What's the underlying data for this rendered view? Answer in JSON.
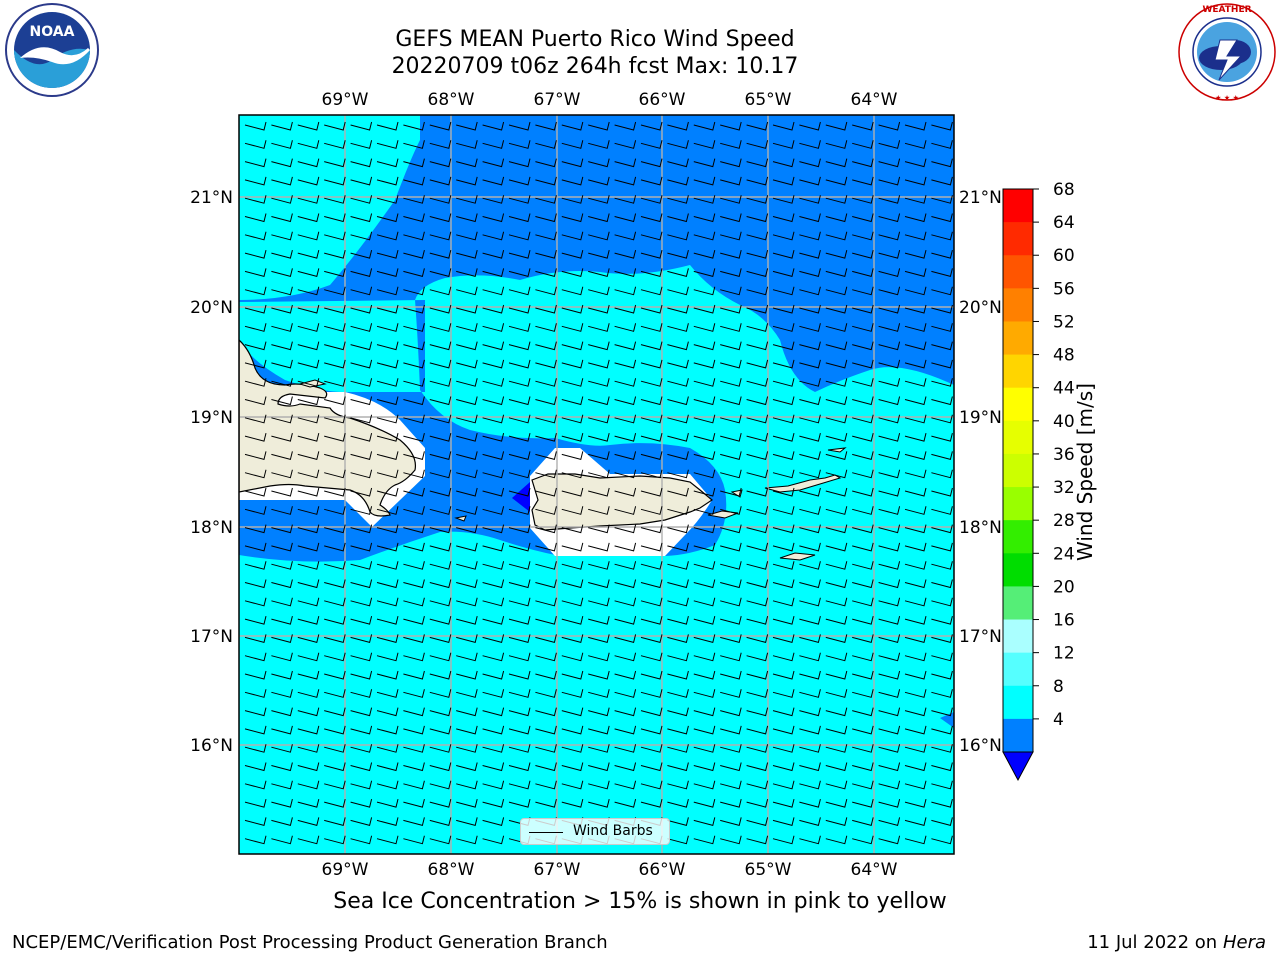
{
  "header": {
    "title_line1": "GEFS MEAN Puerto Rico Wind Speed",
    "title_line2": "20220709 t06z 264h fcst   Max: 10.17"
  },
  "logos": {
    "left": {
      "text": "NOAA",
      "ring_text": "NATIONAL OCEANIC AND ATMOSPHERIC ADMINISTRATION · U.S. DEPARTMENT OF COMMERCE"
    },
    "right": {
      "ring_text": "NATIONAL WEATHER SERVICE"
    }
  },
  "map": {
    "lon_labels": [
      "69°W",
      "68°W",
      "67°W",
      "66°W",
      "65°W",
      "64°W"
    ],
    "lat_labels": [
      "21°N",
      "20°N",
      "19°N",
      "18°N",
      "17°N",
      "16°N"
    ],
    "legend_label": "Wind Barbs"
  },
  "colorbar": {
    "label": "Wind Speed [m/s]",
    "ticks": [
      "68",
      "64",
      "60",
      "56",
      "52",
      "48",
      "44",
      "40",
      "36",
      "32",
      "28",
      "24",
      "20",
      "16",
      "12",
      "8",
      "4"
    ],
    "colors": [
      "#ff0000",
      "#ff2a00",
      "#ff5500",
      "#ff8000",
      "#ffaa00",
      "#ffd500",
      "#ffff00",
      "#e6ff00",
      "#ccff00",
      "#99ff00",
      "#33ee00",
      "#00dd00",
      "#55ee77",
      "#aaffff",
      "#55ffff",
      "#00ffff",
      "#0080ff"
    ],
    "under_color": "#0000ff"
  },
  "colors": {
    "land": "#efedda",
    "sea_light": "#00ffff",
    "sea_mid": "#0080ff",
    "sea_dark": "#0000ff",
    "grid": "#b0b0b0"
  },
  "footer": {
    "note": "Sea Ice Concentration > 15% is shown in pink to yellow",
    "left": "NCEP/EMC/Verification Post Processing Product Generation Branch",
    "right_prefix": "11 Jul 2022 on ",
    "right_italic": "Hera"
  }
}
